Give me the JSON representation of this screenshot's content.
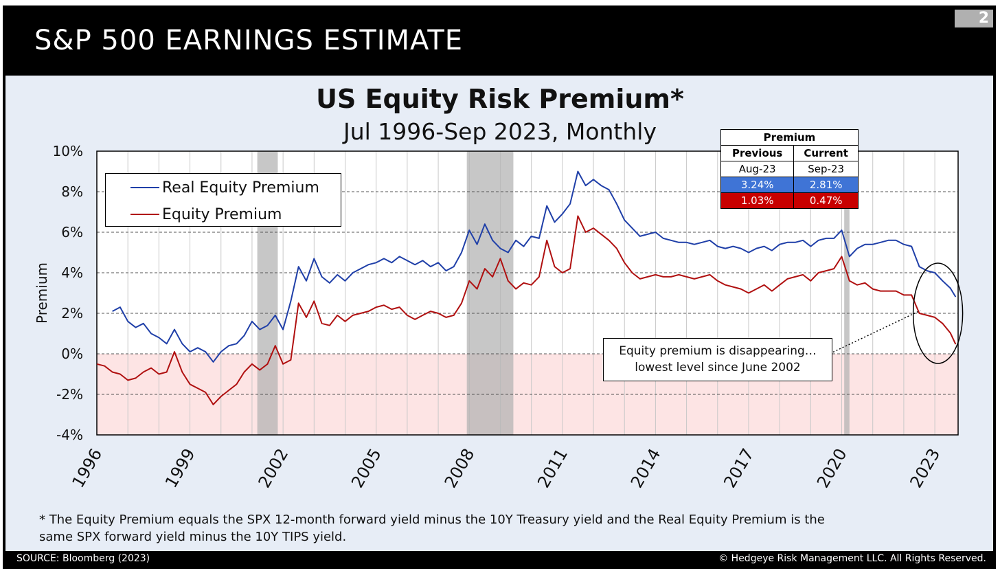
{
  "header": {
    "title": "S&P 500 EARNINGS ESTIMATE",
    "page_number": "2"
  },
  "colors": {
    "real": "#1f3fa8",
    "equity": "#b01010",
    "recession": "#b4b4b4",
    "negative_zone": "#fde4e4",
    "table_blue": "#3f74d6",
    "table_red": "#c80000"
  },
  "chart_data": {
    "type": "line",
    "title": "US Equity Risk Premium*",
    "subtitle": "Jul 1996-Sep 2023, Monthly",
    "xlabel": "",
    "ylabel": "Premium",
    "ylim": [
      -4,
      10
    ],
    "xlim": [
      1996.0,
      2023.75
    ],
    "y_ticks": [
      "-4%",
      "-2%",
      "0%",
      "2%",
      "4%",
      "6%",
      "8%",
      "10%"
    ],
    "x_ticks": [
      "1996",
      "1999",
      "2002",
      "2005",
      "2008",
      "2011",
      "2014",
      "2017",
      "2020",
      "2023"
    ],
    "recessions": [
      [
        2001.17,
        2001.83
      ],
      [
        2007.92,
        2009.42
      ],
      [
        2020.08,
        2020.25
      ]
    ],
    "negative_zone": [
      -4,
      0
    ],
    "legend_position": "top-left",
    "series": [
      {
        "name": "Real Equity Premium",
        "color": "#1f3fa8",
        "points": [
          [
            1996.5,
            2.1
          ],
          [
            1996.75,
            2.3
          ],
          [
            1997.0,
            1.6
          ],
          [
            1997.25,
            1.3
          ],
          [
            1997.5,
            1.5
          ],
          [
            1997.75,
            1.0
          ],
          [
            1998.0,
            0.8
          ],
          [
            1998.25,
            0.5
          ],
          [
            1998.5,
            1.2
          ],
          [
            1998.75,
            0.5
          ],
          [
            1999.0,
            0.1
          ],
          [
            1999.25,
            0.3
          ],
          [
            1999.5,
            0.1
          ],
          [
            1999.75,
            -0.4
          ],
          [
            2000.0,
            0.1
          ],
          [
            2000.25,
            0.4
          ],
          [
            2000.5,
            0.5
          ],
          [
            2000.75,
            0.9
          ],
          [
            2001.0,
            1.6
          ],
          [
            2001.25,
            1.2
          ],
          [
            2001.5,
            1.4
          ],
          [
            2001.75,
            1.9
          ],
          [
            2002.0,
            1.2
          ],
          [
            2002.25,
            2.6
          ],
          [
            2002.5,
            4.3
          ],
          [
            2002.75,
            3.6
          ],
          [
            2003.0,
            4.7
          ],
          [
            2003.25,
            3.8
          ],
          [
            2003.5,
            3.5
          ],
          [
            2003.75,
            3.9
          ],
          [
            2004.0,
            3.6
          ],
          [
            2004.25,
            4.0
          ],
          [
            2004.5,
            4.2
          ],
          [
            2004.75,
            4.4
          ],
          [
            2005.0,
            4.5
          ],
          [
            2005.25,
            4.7
          ],
          [
            2005.5,
            4.5
          ],
          [
            2005.75,
            4.8
          ],
          [
            2006.0,
            4.6
          ],
          [
            2006.25,
            4.4
          ],
          [
            2006.5,
            4.6
          ],
          [
            2006.75,
            4.3
          ],
          [
            2007.0,
            4.5
          ],
          [
            2007.25,
            4.1
          ],
          [
            2007.5,
            4.3
          ],
          [
            2007.75,
            5.0
          ],
          [
            2008.0,
            6.1
          ],
          [
            2008.25,
            5.4
          ],
          [
            2008.5,
            6.4
          ],
          [
            2008.75,
            5.6
          ],
          [
            2009.0,
            5.2
          ],
          [
            2009.25,
            5.0
          ],
          [
            2009.5,
            5.6
          ],
          [
            2009.75,
            5.3
          ],
          [
            2010.0,
            5.8
          ],
          [
            2010.25,
            5.7
          ],
          [
            2010.5,
            7.3
          ],
          [
            2010.75,
            6.5
          ],
          [
            2011.0,
            6.9
          ],
          [
            2011.25,
            7.4
          ],
          [
            2011.5,
            9.0
          ],
          [
            2011.75,
            8.3
          ],
          [
            2012.0,
            8.6
          ],
          [
            2012.25,
            8.3
          ],
          [
            2012.5,
            8.1
          ],
          [
            2012.75,
            7.4
          ],
          [
            2013.0,
            6.6
          ],
          [
            2013.25,
            6.2
          ],
          [
            2013.5,
            5.8
          ],
          [
            2013.75,
            5.9
          ],
          [
            2014.0,
            6.0
          ],
          [
            2014.25,
            5.7
          ],
          [
            2014.5,
            5.6
          ],
          [
            2014.75,
            5.5
          ],
          [
            2015.0,
            5.5
          ],
          [
            2015.25,
            5.4
          ],
          [
            2015.5,
            5.5
          ],
          [
            2015.75,
            5.6
          ],
          [
            2016.0,
            5.3
          ],
          [
            2016.25,
            5.2
          ],
          [
            2016.5,
            5.3
          ],
          [
            2016.75,
            5.2
          ],
          [
            2017.0,
            5.0
          ],
          [
            2017.25,
            5.2
          ],
          [
            2017.5,
            5.3
          ],
          [
            2017.75,
            5.1
          ],
          [
            2018.0,
            5.4
          ],
          [
            2018.25,
            5.5
          ],
          [
            2018.5,
            5.5
          ],
          [
            2018.75,
            5.6
          ],
          [
            2019.0,
            5.3
          ],
          [
            2019.25,
            5.6
          ],
          [
            2019.5,
            5.7
          ],
          [
            2019.75,
            5.7
          ],
          [
            2020.0,
            6.1
          ],
          [
            2020.25,
            4.8
          ],
          [
            2020.5,
            5.2
          ],
          [
            2020.75,
            5.4
          ],
          [
            2021.0,
            5.4
          ],
          [
            2021.25,
            5.5
          ],
          [
            2021.5,
            5.6
          ],
          [
            2021.75,
            5.6
          ],
          [
            2022.0,
            5.4
          ],
          [
            2022.25,
            5.3
          ],
          [
            2022.5,
            4.3
          ],
          [
            2022.75,
            4.1
          ],
          [
            2023.0,
            4.0
          ],
          [
            2023.25,
            3.6
          ],
          [
            2023.5,
            3.24
          ],
          [
            2023.67,
            2.81
          ]
        ]
      },
      {
        "name": "Equity Premium",
        "color": "#b01010",
        "points": [
          [
            1996.0,
            -0.5
          ],
          [
            1996.25,
            -0.6
          ],
          [
            1996.5,
            -0.9
          ],
          [
            1996.75,
            -1.0
          ],
          [
            1997.0,
            -1.3
          ],
          [
            1997.25,
            -1.2
          ],
          [
            1997.5,
            -0.9
          ],
          [
            1997.75,
            -0.7
          ],
          [
            1998.0,
            -1.0
          ],
          [
            1998.25,
            -0.9
          ],
          [
            1998.5,
            0.1
          ],
          [
            1998.75,
            -0.9
          ],
          [
            1999.0,
            -1.5
          ],
          [
            1999.25,
            -1.7
          ],
          [
            1999.5,
            -1.9
          ],
          [
            1999.75,
            -2.5
          ],
          [
            2000.0,
            -2.1
          ],
          [
            2000.25,
            -1.8
          ],
          [
            2000.5,
            -1.5
          ],
          [
            2000.75,
            -0.9
          ],
          [
            2001.0,
            -0.5
          ],
          [
            2001.25,
            -0.8
          ],
          [
            2001.5,
            -0.5
          ],
          [
            2001.75,
            0.4
          ],
          [
            2002.0,
            -0.5
          ],
          [
            2002.25,
            -0.3
          ],
          [
            2002.5,
            2.5
          ],
          [
            2002.75,
            1.8
          ],
          [
            2003.0,
            2.6
          ],
          [
            2003.25,
            1.5
          ],
          [
            2003.5,
            1.4
          ],
          [
            2003.75,
            1.9
          ],
          [
            2004.0,
            1.6
          ],
          [
            2004.25,
            1.9
          ],
          [
            2004.5,
            2.0
          ],
          [
            2004.75,
            2.1
          ],
          [
            2005.0,
            2.3
          ],
          [
            2005.25,
            2.4
          ],
          [
            2005.5,
            2.2
          ],
          [
            2005.75,
            2.3
          ],
          [
            2006.0,
            1.9
          ],
          [
            2006.25,
            1.7
          ],
          [
            2006.5,
            1.9
          ],
          [
            2006.75,
            2.1
          ],
          [
            2007.0,
            2.0
          ],
          [
            2007.25,
            1.8
          ],
          [
            2007.5,
            1.9
          ],
          [
            2007.75,
            2.5
          ],
          [
            2008.0,
            3.6
          ],
          [
            2008.25,
            3.2
          ],
          [
            2008.5,
            4.2
          ],
          [
            2008.75,
            3.8
          ],
          [
            2009.0,
            4.7
          ],
          [
            2009.25,
            3.6
          ],
          [
            2009.5,
            3.2
          ],
          [
            2009.75,
            3.5
          ],
          [
            2010.0,
            3.4
          ],
          [
            2010.25,
            3.8
          ],
          [
            2010.5,
            5.6
          ],
          [
            2010.75,
            4.3
          ],
          [
            2011.0,
            4.0
          ],
          [
            2011.25,
            4.2
          ],
          [
            2011.5,
            6.8
          ],
          [
            2011.75,
            6.0
          ],
          [
            2012.0,
            6.2
          ],
          [
            2012.25,
            5.9
          ],
          [
            2012.5,
            5.6
          ],
          [
            2012.75,
            5.2
          ],
          [
            2013.0,
            4.5
          ],
          [
            2013.25,
            4.0
          ],
          [
            2013.5,
            3.7
          ],
          [
            2013.75,
            3.8
          ],
          [
            2014.0,
            3.9
          ],
          [
            2014.25,
            3.8
          ],
          [
            2014.5,
            3.8
          ],
          [
            2014.75,
            3.9
          ],
          [
            2015.0,
            3.8
          ],
          [
            2015.25,
            3.7
          ],
          [
            2015.5,
            3.8
          ],
          [
            2015.75,
            3.9
          ],
          [
            2016.0,
            3.6
          ],
          [
            2016.25,
            3.4
          ],
          [
            2016.5,
            3.3
          ],
          [
            2016.75,
            3.2
          ],
          [
            2017.0,
            3.0
          ],
          [
            2017.25,
            3.2
          ],
          [
            2017.5,
            3.4
          ],
          [
            2017.75,
            3.1
          ],
          [
            2018.0,
            3.4
          ],
          [
            2018.25,
            3.7
          ],
          [
            2018.5,
            3.8
          ],
          [
            2018.75,
            3.9
          ],
          [
            2019.0,
            3.6
          ],
          [
            2019.25,
            4.0
          ],
          [
            2019.5,
            4.1
          ],
          [
            2019.75,
            4.2
          ],
          [
            2020.0,
            4.8
          ],
          [
            2020.25,
            3.6
          ],
          [
            2020.5,
            3.4
          ],
          [
            2020.75,
            3.5
          ],
          [
            2021.0,
            3.2
          ],
          [
            2021.25,
            3.1
          ],
          [
            2021.5,
            3.1
          ],
          [
            2021.75,
            3.1
          ],
          [
            2022.0,
            2.9
          ],
          [
            2022.25,
            2.9
          ],
          [
            2022.5,
            2.0
          ],
          [
            2022.75,
            1.9
          ],
          [
            2023.0,
            1.8
          ],
          [
            2023.25,
            1.5
          ],
          [
            2023.5,
            1.03
          ],
          [
            2023.67,
            0.47
          ]
        ]
      }
    ]
  },
  "legend": {
    "items": [
      {
        "label": "Real Equity Premium"
      },
      {
        "label": "Equity Premium"
      }
    ]
  },
  "premium_table": {
    "title": "Premium",
    "col1_header": "Previous",
    "col2_header": "Current",
    "col1_date": "Aug-23",
    "col2_date": "Sep-23",
    "real_prev": "3.24%",
    "real_curr": "2.81%",
    "equity_prev": "1.03%",
    "equity_curr": "0.47%"
  },
  "annotation": {
    "line1": "Equity premium is disappearing…",
    "line2": "lowest level since June 2002"
  },
  "footnote": {
    "line1": "* The Equity Premium equals the SPX 12-month forward yield minus the 10Y Treasury yield and the Real Equity Premium is the",
    "line2": "same SPX forward yield minus the 10Y TIPS yield."
  },
  "footer": {
    "source": "SOURCE: Bloomberg (2023)",
    "copyright": "© Hedgeye Risk Management LLC. All Rights Reserved."
  }
}
